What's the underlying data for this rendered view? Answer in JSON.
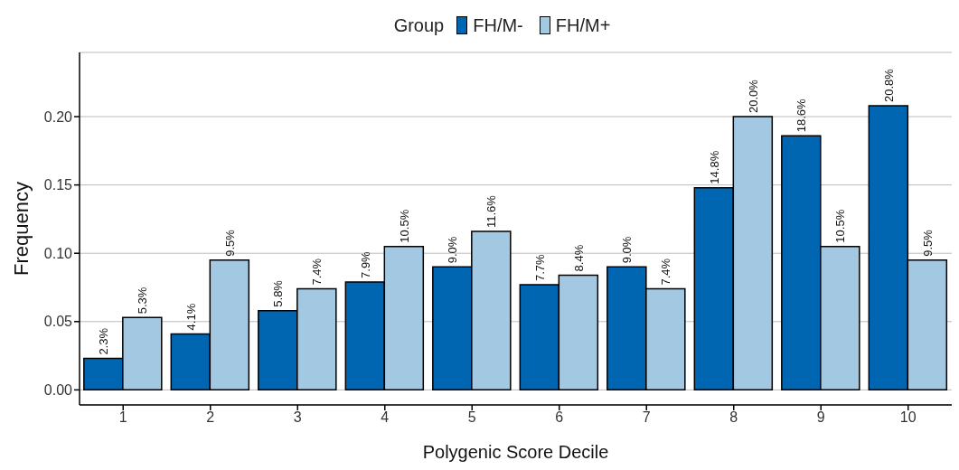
{
  "chart_data": {
    "type": "bar",
    "xlabel": "Polygenic Score Decile",
    "ylabel": "Frequency",
    "legend_title": "Group",
    "legend": "top",
    "categories": [
      "1",
      "2",
      "3",
      "4",
      "5",
      "6",
      "7",
      "8",
      "9",
      "10"
    ],
    "series": [
      {
        "name": "FH/M-",
        "color": "#0066b2",
        "values": [
          0.023,
          0.041,
          0.058,
          0.079,
          0.09,
          0.077,
          0.09,
          0.148,
          0.186,
          0.208
        ],
        "value_labels": [
          "2.3%",
          "4.1%",
          "5.8%",
          "7.9%",
          "9.0%",
          "7.7%",
          "9.0%",
          "14.8%",
          "18.6%",
          "20.8%"
        ]
      },
      {
        "name": "FH/M+",
        "color": "#a2c8e2",
        "values": [
          0.053,
          0.095,
          0.074,
          0.105,
          0.116,
          0.084,
          0.074,
          0.2,
          0.105,
          0.095
        ],
        "value_labels": [
          "5.3%",
          "9.5%",
          "7.4%",
          "10.5%",
          "11.6%",
          "8.4%",
          "7.4%",
          "20.0%",
          "10.5%",
          "9.5%"
        ]
      }
    ],
    "ylim": [
      -0.011,
      0.247
    ],
    "yticks": [
      {
        "value": 0,
        "label": "0.00"
      },
      {
        "value": 0.05,
        "label": "0.05"
      },
      {
        "value": 0.1,
        "label": "0.10"
      },
      {
        "value": 0.15,
        "label": "0.15"
      },
      {
        "value": 0.2,
        "label": "0.20"
      }
    ],
    "grid": "y"
  }
}
